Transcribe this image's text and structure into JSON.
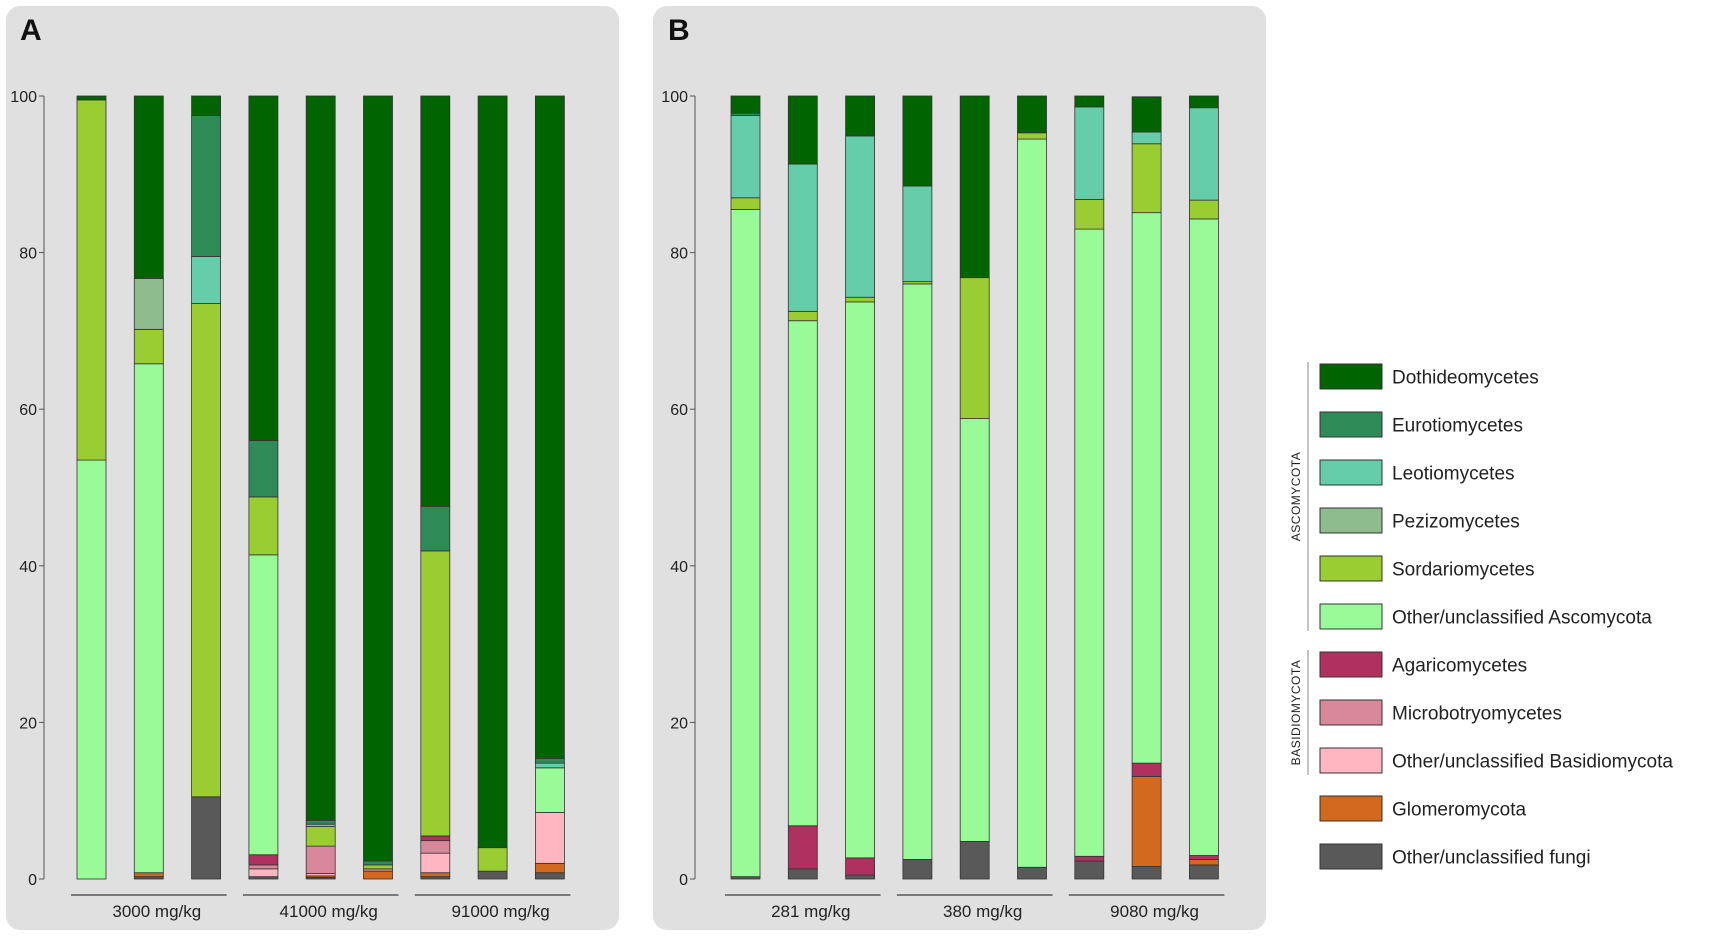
{
  "chart_data": {
    "type": "bar",
    "stacked": true,
    "ylim": [
      0,
      100
    ],
    "yticks": [
      0,
      20,
      40,
      60,
      80,
      100
    ],
    "categories_order": [
      "Other/unclassified fungi",
      "Glomeromycota",
      "Other/unclassified Basidiomycota",
      "Microbotryomycetes",
      "Agaricomycetes",
      "Other/unclassified Ascomycota",
      "Sordariomycetes",
      "Pezizomycetes",
      "Leotiomycetes",
      "Eurotiomycetes",
      "Dothideomycetes"
    ],
    "colors": {
      "Dothideomycetes": "#006400",
      "Eurotiomycetes": "#2e8b57",
      "Leotiomycetes": "#66cdaa",
      "Pezizomycetes": "#8fbc8f",
      "Sordariomycetes": "#9acd32",
      "Other/unclassified Ascomycota": "#98fb98",
      "Agaricomycetes": "#b03060",
      "Microbotryomycetes": "#d8889a",
      "Other/unclassified Basidiomycota": "#ffb6c1",
      "Glomeromycota": "#d2691e",
      "Other/unclassified fungi": "#595959"
    },
    "panels": [
      {
        "label": "A",
        "groups": [
          "3000 mg/kg",
          "41000 mg/kg",
          "91000 mg/kg"
        ],
        "bars": [
          {
            "Other/unclassified fungi": 0,
            "Glomeromycota": 0,
            "Other/unclassified Basidiomycota": 0,
            "Microbotryomycetes": 0,
            "Agaricomycetes": 0,
            "Other/unclassified Ascomycota": 53.5,
            "Sordariomycetes": 46,
            "Pezizomycetes": 0,
            "Leotiomycetes": 0,
            "Eurotiomycetes": 0,
            "Dothideomycetes": 0.5
          },
          {
            "Other/unclassified fungi": 0.3,
            "Glomeromycota": 0.5,
            "Other/unclassified Basidiomycota": 0,
            "Microbotryomycetes": 0,
            "Agaricomycetes": 0,
            "Other/unclassified Ascomycota": 65,
            "Sordariomycetes": 4.4,
            "Pezizomycetes": 6.5,
            "Leotiomycetes": 0,
            "Eurotiomycetes": 0,
            "Dothideomycetes": 23.3
          },
          {
            "Other/unclassified fungi": 10.5,
            "Glomeromycota": 0,
            "Other/unclassified Basidiomycota": 0,
            "Microbotryomycetes": 0,
            "Agaricomycetes": 0,
            "Other/unclassified Ascomycota": 0,
            "Sordariomycetes": 63,
            "Pezizomycetes": 0,
            "Leotiomycetes": 6,
            "Eurotiomycetes": 18,
            "Dothideomycetes": 2.5
          },
          {
            "Other/unclassified fungi": 0.3,
            "Glomeromycota": 0,
            "Other/unclassified Basidiomycota": 1,
            "Microbotryomycetes": 0.5,
            "Agaricomycetes": 1.3,
            "Other/unclassified Ascomycota": 38.3,
            "Sordariomycetes": 7.4,
            "Pezizomycetes": 0,
            "Leotiomycetes": 0,
            "Eurotiomycetes": 7.2,
            "Dothideomycetes": 44
          },
          {
            "Other/unclassified fungi": 0.2,
            "Glomeromycota": 0.2,
            "Other/unclassified Basidiomycota": 0.3,
            "Microbotryomycetes": 3.5,
            "Agaricomycetes": 0,
            "Other/unclassified Ascomycota": 0,
            "Sordariomycetes": 2.5,
            "Pezizomycetes": 0,
            "Leotiomycetes": 0.3,
            "Eurotiomycetes": 0.5,
            "Dothideomycetes": 92.5
          },
          {
            "Other/unclassified fungi": 0,
            "Glomeromycota": 1,
            "Other/unclassified Basidiomycota": 0,
            "Microbotryomycetes": 0.3,
            "Agaricomycetes": 0,
            "Other/unclassified Ascomycota": 0,
            "Sordariomycetes": 0.5,
            "Pezizomycetes": 0,
            "Leotiomycetes": 0,
            "Eurotiomycetes": 0.5,
            "Dothideomycetes": 97.7
          },
          {
            "Other/unclassified fungi": 0.3,
            "Glomeromycota": 0.5,
            "Other/unclassified Basidiomycota": 2.5,
            "Microbotryomycetes": 1.6,
            "Agaricomycetes": 0.6,
            "Other/unclassified Ascomycota": 0,
            "Sordariomycetes": 36.4,
            "Pezizomycetes": 0,
            "Leotiomycetes": 0,
            "Eurotiomycetes": 5.7,
            "Dothideomycetes": 52.4
          },
          {
            "Other/unclassified fungi": 1,
            "Glomeromycota": 0,
            "Other/unclassified Basidiomycota": 0,
            "Microbotryomycetes": 0,
            "Agaricomycetes": 0,
            "Other/unclassified Ascomycota": 0,
            "Sordariomycetes": 3,
            "Pezizomycetes": 0,
            "Leotiomycetes": 0,
            "Eurotiomycetes": 0,
            "Dothideomycetes": 96
          },
          {
            "Other/unclassified fungi": 0.8,
            "Glomeromycota": 1.2,
            "Other/unclassified Basidiomycota": 6.5,
            "Microbotryomycetes": 0,
            "Agaricomycetes": 0,
            "Other/unclassified Ascomycota": 5.7,
            "Sordariomycetes": 0,
            "Pezizomycetes": 0,
            "Leotiomycetes": 0.6,
            "Eurotiomycetes": 0.6,
            "Dothideomycetes": 84.6
          }
        ]
      },
      {
        "label": "B",
        "groups": [
          "281 mg/kg",
          "380 mg/kg",
          "9080 mg/kg"
        ],
        "bars": [
          {
            "Other/unclassified fungi": 0.3,
            "Glomeromycota": 0,
            "Other/unclassified Basidiomycota": 0,
            "Microbotryomycetes": 0,
            "Agaricomycetes": 0,
            "Other/unclassified Ascomycota": 85.2,
            "Sordariomycetes": 1.5,
            "Pezizomycetes": 0,
            "Leotiomycetes": 10.5,
            "Eurotiomycetes": 0.3,
            "Dothideomycetes": 2.2
          },
          {
            "Other/unclassified fungi": 1.3,
            "Glomeromycota": 0,
            "Other/unclassified Basidiomycota": 0,
            "Microbotryomycetes": 0,
            "Agaricomycetes": 5.5,
            "Other/unclassified Ascomycota": 64.5,
            "Sordariomycetes": 1.2,
            "Pezizomycetes": 0,
            "Leotiomycetes": 18.8,
            "Eurotiomycetes": 0,
            "Dothideomycetes": 8.7
          },
          {
            "Other/unclassified fungi": 0.5,
            "Glomeromycota": 0,
            "Other/unclassified Basidiomycota": 0,
            "Microbotryomycetes": 0,
            "Agaricomycetes": 2.2,
            "Other/unclassified Ascomycota": 71,
            "Sordariomycetes": 0.6,
            "Pezizomycetes": 0,
            "Leotiomycetes": 20.6,
            "Eurotiomycetes": 0,
            "Dothideomycetes": 5.1
          },
          {
            "Other/unclassified fungi": 2.5,
            "Glomeromycota": 0,
            "Other/unclassified Basidiomycota": 0,
            "Microbotryomycetes": 0,
            "Agaricomycetes": 0,
            "Other/unclassified Ascomycota": 73.5,
            "Sordariomycetes": 0.3,
            "Pezizomycetes": 0,
            "Leotiomycetes": 12.2,
            "Eurotiomycetes": 0,
            "Dothideomycetes": 11.5
          },
          {
            "Other/unclassified fungi": 4.8,
            "Glomeromycota": 0,
            "Other/unclassified Basidiomycota": 0,
            "Microbotryomycetes": 0,
            "Agaricomycetes": 0,
            "Other/unclassified Ascomycota": 54,
            "Sordariomycetes": 18,
            "Pezizomycetes": 0,
            "Leotiomycetes": 0,
            "Eurotiomycetes": 0,
            "Dothideomycetes": 23.2
          },
          {
            "Other/unclassified fungi": 1.5,
            "Glomeromycota": 0,
            "Other/unclassified Basidiomycota": 0,
            "Microbotryomycetes": 0,
            "Agaricomycetes": 0,
            "Other/unclassified Ascomycota": 93,
            "Sordariomycetes": 0.8,
            "Pezizomycetes": 0,
            "Leotiomycetes": 0,
            "Eurotiomycetes": 0,
            "Dothideomycetes": 4.7
          },
          {
            "Other/unclassified fungi": 2.3,
            "Glomeromycota": 0,
            "Other/unclassified Basidiomycota": 0,
            "Microbotryomycetes": 0,
            "Agaricomycetes": 0.6,
            "Other/unclassified Ascomycota": 80.1,
            "Sordariomycetes": 3.8,
            "Pezizomycetes": 0,
            "Leotiomycetes": 11.8,
            "Eurotiomycetes": 0,
            "Dothideomycetes": 1.4
          },
          {
            "Other/unclassified fungi": 1.6,
            "Glomeromycota": 11.5,
            "Other/unclassified Basidiomycota": 0,
            "Microbotryomycetes": 0,
            "Agaricomycetes": 1.7,
            "Other/unclassified Ascomycota": 70.3,
            "Sordariomycetes": 8.8,
            "Pezizomycetes": 0,
            "Leotiomycetes": 1.5,
            "Eurotiomycetes": 0,
            "Dothideomycetes": 4.5
          },
          {
            "Other/unclassified fungi": 1.8,
            "Glomeromycota": 0.7,
            "Other/unclassified Basidiomycota": 0,
            "Microbotryomycetes": 0,
            "Agaricomycetes": 0.5,
            "Other/unclassified Ascomycota": 81.3,
            "Sordariomycetes": 2.4,
            "Pezizomycetes": 0,
            "Leotiomycetes": 11.8,
            "Eurotiomycetes": 0,
            "Dothideomycetes": 1.5
          }
        ]
      }
    ],
    "legend": {
      "placement": "right",
      "items": [
        "Dothideomycetes",
        "Eurotiomycetes",
        "Leotiomycetes",
        "Pezizomycetes",
        "Sordariomycetes",
        "Other/unclassified Ascomycota",
        "Agaricomycetes",
        "Microbotryomycetes",
        "Other/unclassified Basidiomycota",
        "Glomeromycota",
        "Other/unclassified fungi"
      ],
      "brackets": [
        {
          "label": "ASCOMYCOTA",
          "from": 0,
          "to": 5
        },
        {
          "label": "BASIDIOMYCOTA",
          "from": 6,
          "to": 8
        }
      ]
    }
  }
}
